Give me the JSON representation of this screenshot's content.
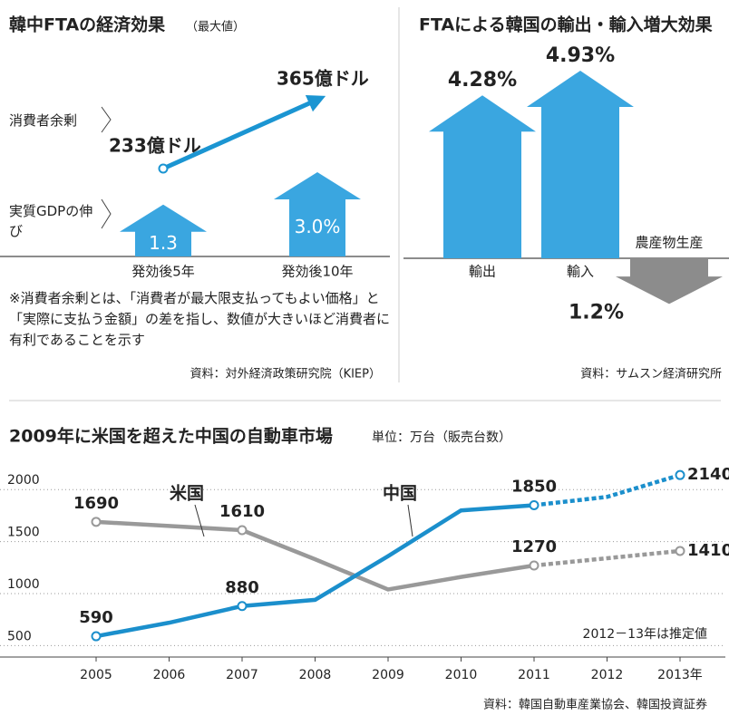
{
  "chart_data": [
    {
      "type": "arrow-infographic",
      "title": "韓中FTAの経済効果",
      "subtitle": "（最大値）",
      "categories": [
        "発効後5年",
        "発効後10年"
      ],
      "series": [
        {
          "name": "消費者余剰",
          "color": "#1b95d2",
          "values": [
            233,
            365
          ],
          "value_labels": [
            "233億ドル",
            "365億ドル"
          ]
        },
        {
          "name": "実質GDPの伸び",
          "color": "#3aa6e0",
          "values": [
            1.3,
            3.0
          ],
          "value_labels": [
            "1.3",
            "3.0%"
          ]
        }
      ],
      "note": "※消費者余剰とは、「消費者が最大限支払ってもよい価格」と「実際に支払う金額」の差を指し、数値が大きいほど消費者に有利であることを示す",
      "source": "資料：対外経済政策研究院（KIEP）"
    },
    {
      "type": "arrow-bar",
      "title": "FTAによる韓国の輸出・輸入増大効果",
      "categories": [
        "輸出",
        "輸入",
        "農産物生産"
      ],
      "values": [
        4.28,
        4.93,
        -1.2
      ],
      "value_labels": [
        "4.28%",
        "4.93%",
        "1.2%"
      ],
      "colors": [
        "#3aa6e0",
        "#3aa6e0",
        "#8c8c8c"
      ],
      "source": "資料：サムスン経済研究所"
    },
    {
      "type": "line",
      "title": "2009年に米国を超えた中国の自動車市場",
      "subtitle": "単位：万台（販売台数）",
      "categories": [
        "2005",
        "2006",
        "2007",
        "2008",
        "2009",
        "2010",
        "2011",
        "2012",
        "2013年"
      ],
      "series": [
        {
          "name": "米国",
          "color": "#999999",
          "values": [
            1690,
            1650,
            1610,
            1330,
            1040,
            1160,
            1270,
            1340,
            1410
          ]
        },
        {
          "name": "中国",
          "color": "#1b8fcc",
          "values": [
            590,
            720,
            880,
            940,
            1360,
            1800,
            1850,
            1930,
            2140
          ]
        }
      ],
      "labeled": [
        0,
        2,
        6,
        8
      ],
      "dashed_after": "2011",
      "ylim": [
        390,
        2220
      ],
      "yticks": [
        500,
        1000,
        1500,
        2000
      ],
      "grid": true,
      "annotation": "2012－13年は推定値",
      "source": "資料：韓国自動車産業協会、韓国投資証券"
    }
  ]
}
